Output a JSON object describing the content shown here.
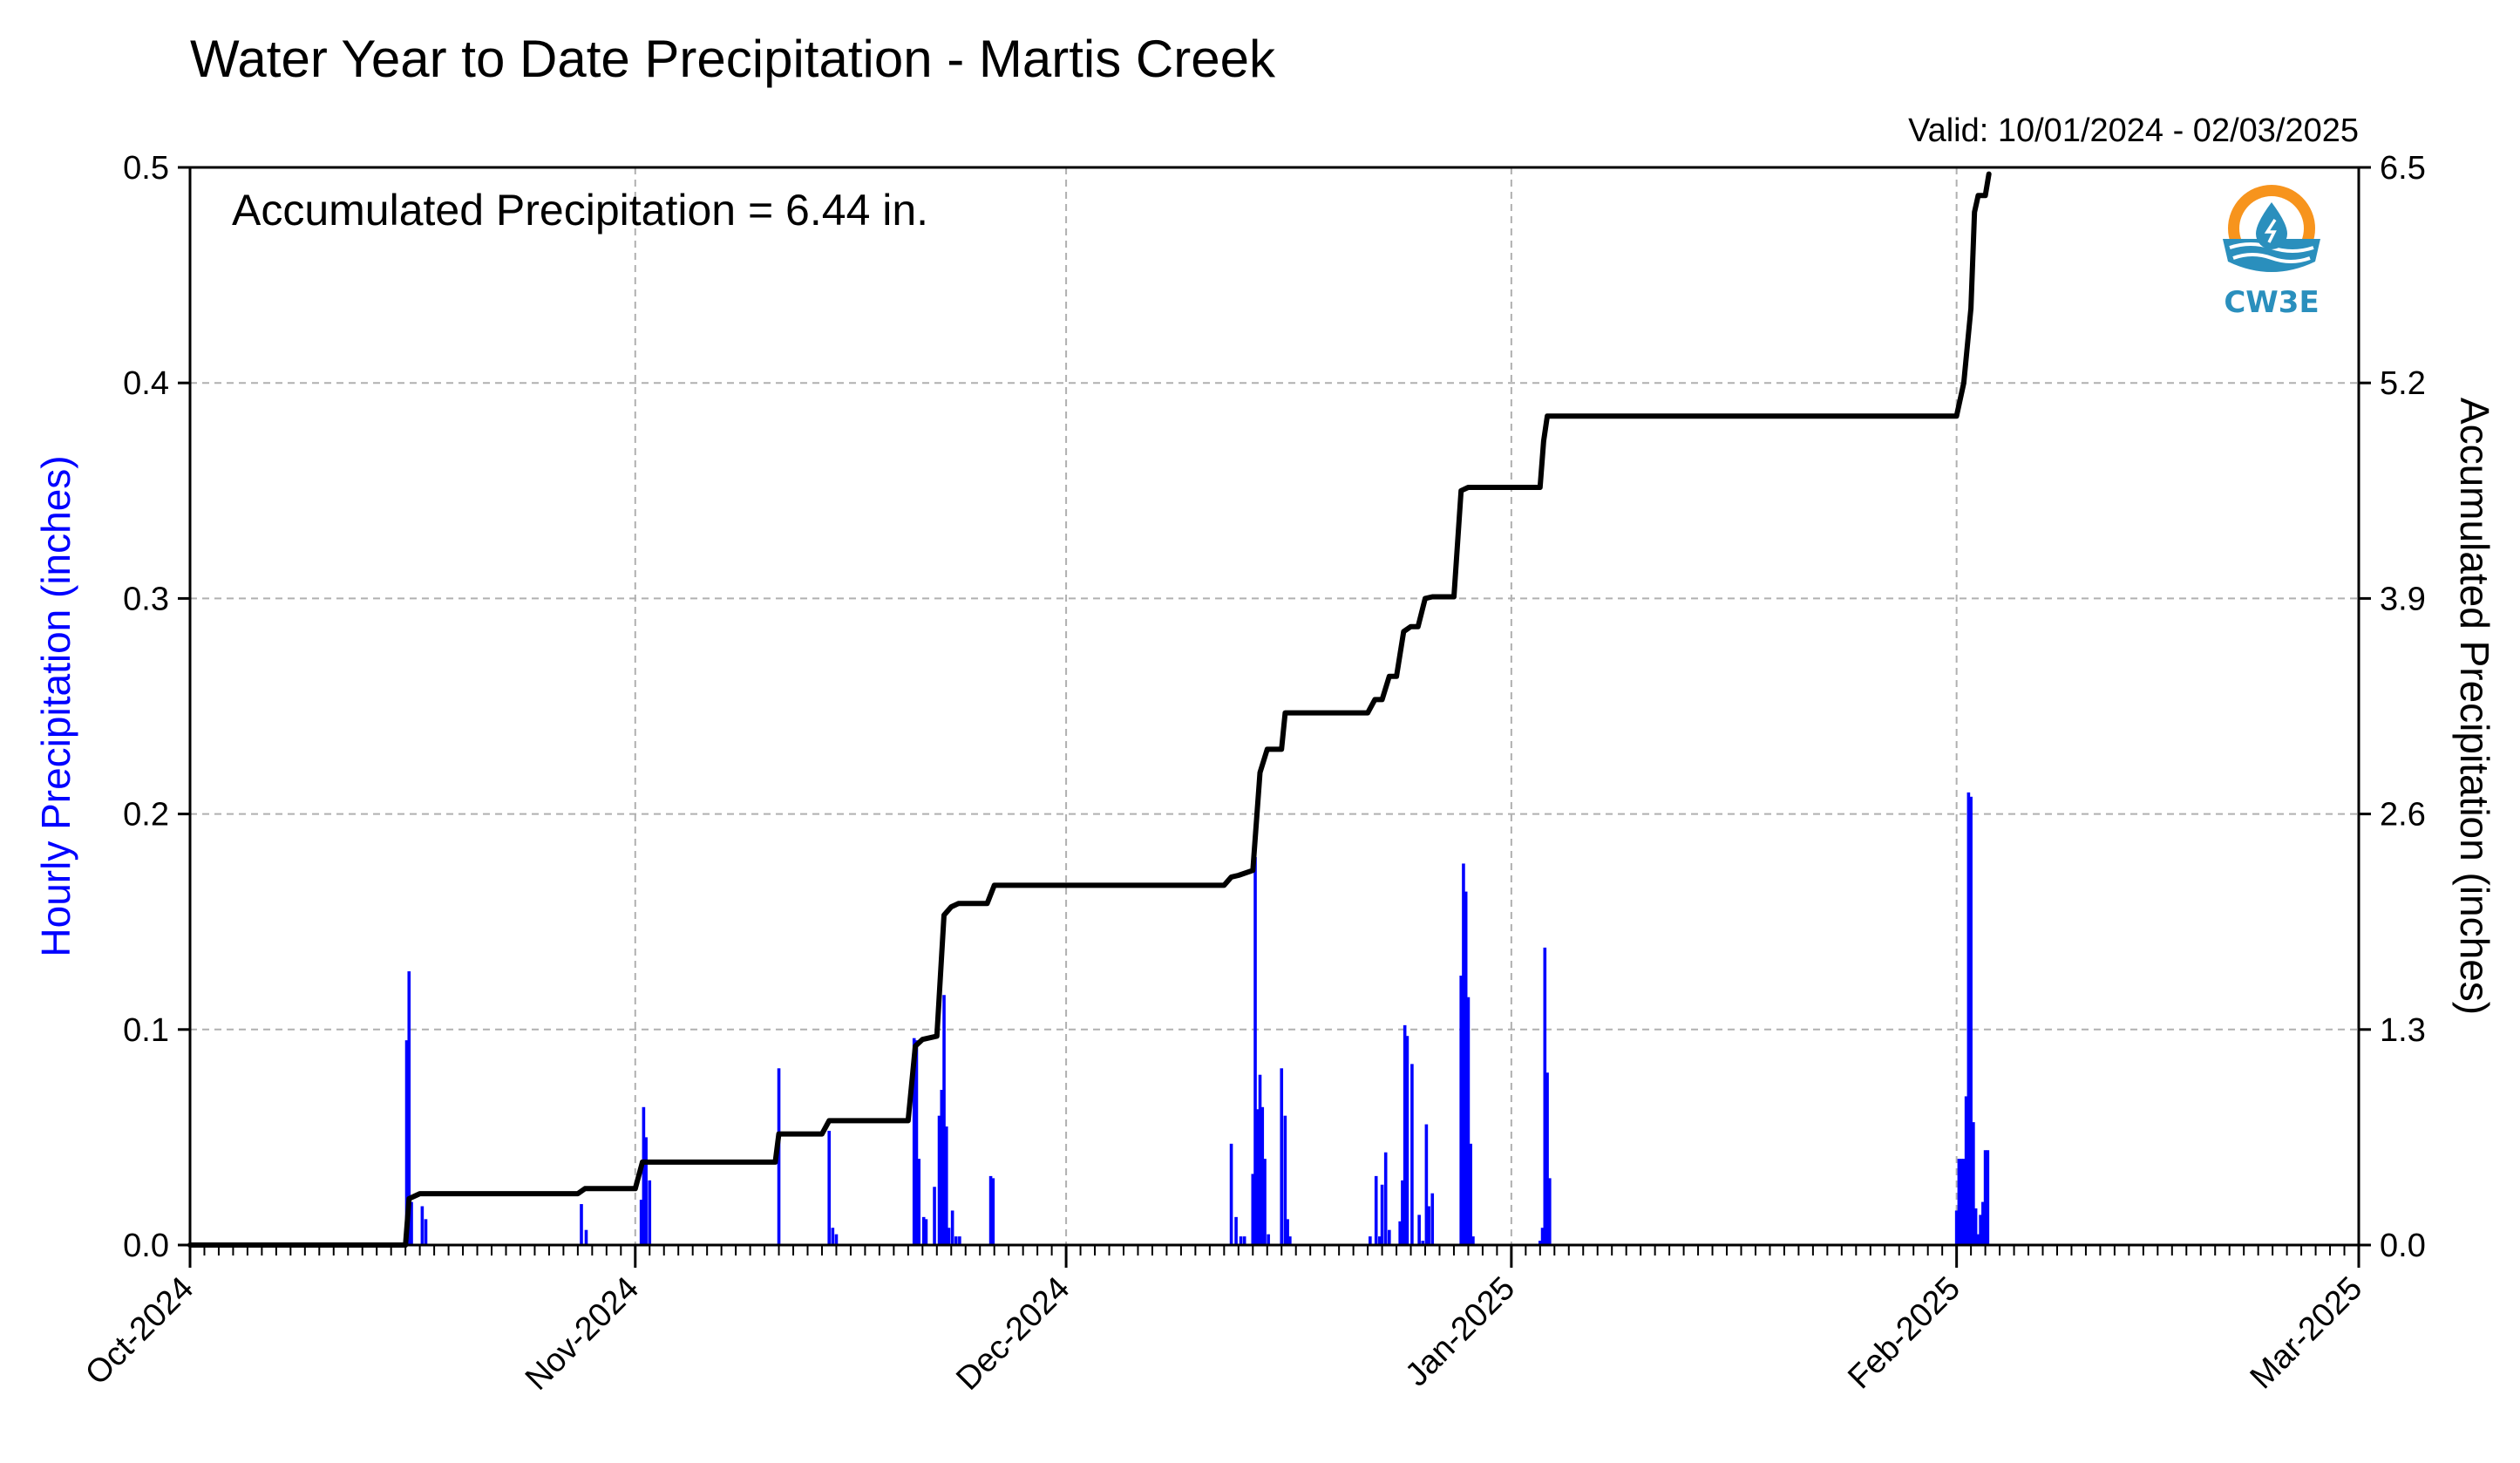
{
  "title": "Water Year to Date Precipitation - Martis Creek",
  "valid_text": "Valid: 10/01/2024 - 02/03/2025",
  "annotation": "Accumulated Precipitation = 6.44 in.",
  "logo": {
    "text": "CW3E",
    "icon": "water-drop-sun-icon",
    "colors": {
      "orange": "#f7941d",
      "blue": "#2a8fbd"
    }
  },
  "colors": {
    "hourly": "#0000ff",
    "accumulated": "#000000",
    "grid": "#b0b0b0",
    "left_label": "#0000ff"
  },
  "chart_data": {
    "type": "bar+line",
    "xlabel": "",
    "ylabel_left": "Hourly Precipitation (inches)",
    "ylabel_right": "Accumulated Precipitation (inches)",
    "x_ticks": [
      "Oct-2024",
      "Nov-2024",
      "Dec-2024",
      "Jan-2025",
      "Feb-2025",
      "Mar-2025"
    ],
    "x_range": [
      "2024-10-01",
      "2025-03-01"
    ],
    "y_left_ticks": [
      "0.0",
      "0.1",
      "0.2",
      "0.3",
      "0.4",
      "0.5"
    ],
    "y_left_lim": [
      0,
      0.5
    ],
    "y_right_ticks": [
      "0.0",
      "1.3",
      "2.6",
      "3.9",
      "5.2",
      "6.5"
    ],
    "y_right_lim": [
      0,
      6.5
    ],
    "grid": true,
    "series": [
      {
        "name": "Hourly Precipitation (inches)",
        "type": "bar",
        "x": [
          "2024-10-16T02:00",
          "2024-10-16T06:00",
          "2024-10-16T10:00",
          "2024-10-17T04:00",
          "2024-10-17T10:00",
          "2024-10-28T06:00",
          "2024-10-28T14:00",
          "2024-11-01T10:00",
          "2024-11-01T14:00",
          "2024-11-01T18:00",
          "2024-11-02T00:00",
          "2024-11-11T00:00",
          "2024-11-14T12:00",
          "2024-11-14T18:00",
          "2024-11-15T00:00",
          "2024-11-20T10:00",
          "2024-11-20T14:00",
          "2024-11-20T18:00",
          "2024-11-21T02:00",
          "2024-11-21T06:00",
          "2024-11-21T20:00",
          "2024-11-22T04:00",
          "2024-11-22T08:00",
          "2024-11-22T12:00",
          "2024-11-22T16:00",
          "2024-11-22T20:00",
          "2024-11-23T02:00",
          "2024-11-23T08:00",
          "2024-11-23T14:00",
          "2024-11-25T18:00",
          "2024-11-25T22:00",
          "2024-12-12T12:00",
          "2024-12-12T20:00",
          "2024-12-13T04:00",
          "2024-12-13T10:00",
          "2024-12-14T00:00",
          "2024-12-14T04:00",
          "2024-12-14T08:00",
          "2024-12-14T12:00",
          "2024-12-14T16:00",
          "2024-12-14T20:00",
          "2024-12-15T02:00",
          "2024-12-16T00:00",
          "2024-12-16T06:00",
          "2024-12-16T10:00",
          "2024-12-16T14:00",
          "2024-12-22T04:00",
          "2024-12-22T14:00",
          "2024-12-22T20:00",
          "2024-12-23T00:00",
          "2024-12-23T06:00",
          "2024-12-23T12:00",
          "2024-12-24T06:00",
          "2024-12-24T10:00",
          "2024-12-24T14:00",
          "2024-12-24T18:00",
          "2024-12-25T02:00",
          "2024-12-25T14:00",
          "2024-12-25T20:00",
          "2024-12-26T02:00",
          "2024-12-26T06:00",
          "2024-12-26T12:00",
          "2024-12-28T12:00",
          "2024-12-28T16:00",
          "2024-12-28T20:00",
          "2024-12-29T00:00",
          "2024-12-29T04:00",
          "2024-12-29T08:00",
          "2025-01-03T00:00",
          "2025-01-03T04:00",
          "2025-01-03T08:00",
          "2025-01-03T12:00",
          "2025-01-03T16:00",
          "2025-02-01T00:00",
          "2025-02-01T04:00",
          "2025-02-01T08:00",
          "2025-02-01T12:00",
          "2025-02-01T16:00",
          "2025-02-01T20:00",
          "2025-02-02T00:00",
          "2025-02-02T04:00",
          "2025-02-02T08:00",
          "2025-02-02T12:00",
          "2025-02-02T16:00",
          "2025-02-02T20:00",
          "2025-02-03T00:00",
          "2025-02-03T04:00"
        ],
        "values": [
          0.095,
          0.127,
          0.02,
          0.018,
          0.012,
          0.019,
          0.007,
          0.021,
          0.064,
          0.05,
          0.03,
          0.082,
          0.053,
          0.008,
          0.005,
          0.096,
          0.095,
          0.04,
          0.013,
          0.012,
          0.027,
          0.06,
          0.072,
          0.116,
          0.055,
          0.008,
          0.016,
          0.004,
          0.004,
          0.032,
          0.031,
          0.047,
          0.013,
          0.004,
          0.004,
          0.033,
          0.18,
          0.063,
          0.079,
          0.064,
          0.04,
          0.005,
          0.082,
          0.06,
          0.012,
          0.004,
          0.004,
          0.032,
          0.004,
          0.028,
          0.043,
          0.007,
          0.011,
          0.03,
          0.102,
          0.097,
          0.084,
          0.014,
          0.002,
          0.056,
          0.018,
          0.024,
          0.125,
          0.177,
          0.164,
          0.115,
          0.047,
          0.004,
          0.002,
          0.008,
          0.138,
          0.08,
          0.031,
          0.016,
          0.04,
          0.04,
          0.04,
          0.069,
          0.21,
          0.208,
          0.057,
          0.017,
          0.005,
          0.014,
          0.02,
          0.044,
          0.044
        ]
      },
      {
        "name": "Accumulated Precipitation (inches)",
        "type": "line",
        "x": [
          "2024-10-01",
          "2024-10-16",
          "2024-10-16T06:00",
          "2024-10-17",
          "2024-10-18",
          "2024-10-28",
          "2024-10-28T12:00",
          "2024-11-01",
          "2024-11-01T12:00",
          "2024-11-02",
          "2024-11-10T18:00",
          "2024-11-11",
          "2024-11-12",
          "2024-11-14",
          "2024-11-14T12:00",
          "2024-11-15",
          "2024-11-20",
          "2024-11-20T12:00",
          "2024-11-21",
          "2024-11-22",
          "2024-11-22T12:00",
          "2024-11-23",
          "2024-11-23T12:00",
          "2024-11-25T12:00",
          "2024-11-26",
          "2024-12-12",
          "2024-12-12T12:00",
          "2024-12-13",
          "2024-12-14",
          "2024-12-14T12:00",
          "2024-12-15",
          "2024-12-16",
          "2024-12-16T06:00",
          "2024-12-22",
          "2024-12-22T12:00",
          "2024-12-23",
          "2024-12-23T12:00",
          "2024-12-24",
          "2024-12-24T12:00",
          "2024-12-25",
          "2024-12-25T12:00",
          "2024-12-26",
          "2024-12-26T12:00",
          "2024-12-28",
          "2024-12-28T12:00",
          "2024-12-29",
          "2025-01-03",
          "2025-01-03T06:00",
          "2025-01-03T12:00",
          "2025-02-01",
          "2025-02-01T12:00",
          "2025-02-02",
          "2025-02-02T06:00",
          "2025-02-02T12:00",
          "2025-02-03",
          "2025-02-03T06:00"
        ],
        "values": [
          0.0,
          0.0,
          0.28,
          0.31,
          0.31,
          0.31,
          0.34,
          0.34,
          0.5,
          0.5,
          0.5,
          0.67,
          0.67,
          0.67,
          0.75,
          0.75,
          0.75,
          1.2,
          1.24,
          1.26,
          1.99,
          2.04,
          2.06,
          2.06,
          2.17,
          2.17,
          2.22,
          2.23,
          2.26,
          2.85,
          2.99,
          2.99,
          3.21,
          3.21,
          3.29,
          3.29,
          3.43,
          3.43,
          3.7,
          3.73,
          3.73,
          3.9,
          3.91,
          3.91,
          4.55,
          4.57,
          4.57,
          4.85,
          5.0,
          5.0,
          5.2,
          5.65,
          6.23,
          6.33,
          6.33,
          6.46
        ]
      }
    ]
  }
}
